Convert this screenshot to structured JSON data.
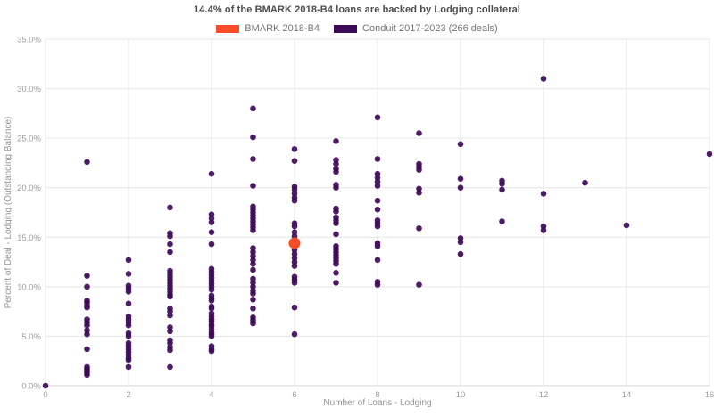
{
  "figure": {
    "title": "14.4% of the BMARK 2018-B4 loans are backed by Lodging collateral"
  },
  "legend": {
    "items": [
      {
        "label": "BMARK 2018-B4",
        "color": "#f94b28"
      },
      {
        "label": "Conduit 2017-2023 (266 deals)",
        "color": "#3d0a57"
      }
    ]
  },
  "chart_data": {
    "type": "scatter",
    "title": "14.4% of the BMARK 2018-B4 loans are backed by Lodging collateral",
    "xlabel": "Number of Loans - Lodging",
    "ylabel": "Percent of Deal - Lodging (Outstanding Balance)",
    "xlim": [
      0,
      16
    ],
    "ylim": [
      0,
      35
    ],
    "x_ticks": [
      0,
      2,
      4,
      6,
      8,
      10,
      12,
      14,
      16
    ],
    "y_ticks": [
      0,
      5,
      10,
      15,
      20,
      25,
      30,
      35
    ],
    "y_tick_suffix": ".0%",
    "grid": true,
    "legend_position": "top-center",
    "colors": {
      "gridline": "#e6e6e6",
      "baseline": "#d4d4d4",
      "tick_text": "#9e9e9e",
      "axis_text": "#949494"
    },
    "series": [
      {
        "name": "Conduit 2017-2023 (266 deals)",
        "color": "#3d0a57",
        "marker_radius": 3.3,
        "opacity": 0.92,
        "columns": [
          {
            "x": 0,
            "ys": [
              0.0
            ]
          },
          {
            "x": 1,
            "ys": [
              22.6,
              11.1,
              10.0,
              8.6,
              8.4,
              8.1,
              7.9,
              6.7,
              6.4,
              6.1,
              5.6,
              5.2,
              3.7,
              1.9,
              1.7,
              1.5,
              1.3,
              1.1
            ]
          },
          {
            "x": 2,
            "ys": [
              12.7,
              11.3,
              10.1,
              9.8,
              9.5,
              8.3,
              7.0,
              6.7,
              6.4,
              6.1,
              5.3,
              5.0,
              4.3,
              4.0,
              3.7,
              3.4,
              3.1,
              2.8,
              2.6,
              1.9
            ]
          },
          {
            "x": 3,
            "ys": [
              18.0,
              15.4,
              15.1,
              14.3,
              13.5,
              11.6,
              11.3,
              11.0,
              10.7,
              10.4,
              10.1,
              9.8,
              9.5,
              9.2,
              9.0,
              7.8,
              7.5,
              7.1,
              5.9,
              5.5,
              4.6,
              4.3,
              3.9,
              3.6,
              1.9
            ]
          },
          {
            "x": 4,
            "ys": [
              21.4,
              17.3,
              16.9,
              16.5,
              15.5,
              14.3,
              11.8,
              11.5,
              11.2,
              10.9,
              10.6,
              10.3,
              10.0,
              9.7,
              9.1,
              8.8,
              8.6,
              8.0,
              7.8,
              7.3,
              7.0,
              6.7,
              6.5,
              6.2,
              6.0,
              5.7,
              5.4,
              5.2,
              5.0,
              4.0,
              3.7,
              3.5
            ]
          },
          {
            "x": 5,
            "ys": [
              28.0,
              25.1,
              22.9,
              20.2,
              18.1,
              17.8,
              17.5,
              17.2,
              16.9,
              16.6,
              16.3,
              16.0,
              15.7,
              13.9,
              13.5,
              13.1,
              12.7,
              12.3,
              11.7,
              10.8,
              10.4,
              10.0,
              9.6,
              9.3,
              8.7,
              7.8,
              6.9,
              6.6,
              6.3
            ]
          },
          {
            "x": 6,
            "ys": [
              23.9,
              22.7,
              20.1,
              19.8,
              19.4,
              19.0,
              18.7,
              16.4,
              16.1,
              15.5,
              15.1,
              14.7,
              14.1,
              13.7,
              13.3,
              12.9,
              12.5,
              12.1,
              11.0,
              10.7,
              10.4,
              7.9,
              5.2
            ]
          },
          {
            "x": 7,
            "ys": [
              24.7,
              22.8,
              22.4,
              21.9,
              21.6,
              20.3,
              20.0,
              17.9,
              17.6,
              17.0,
              16.7,
              16.4,
              15.3,
              14.1,
              13.8,
              13.5,
              13.2,
              12.9,
              12.6,
              12.3,
              11.4,
              10.4
            ]
          },
          {
            "x": 8,
            "ys": [
              27.1,
              22.9,
              21.4,
              21.0,
              20.6,
              20.2,
              18.7,
              17.8,
              16.7,
              16.4,
              16.1,
              14.4,
              14.1,
              12.7,
              10.5,
              10.2
            ]
          },
          {
            "x": 9,
            "ys": [
              25.5,
              22.4,
              22.1,
              21.8,
              19.9,
              19.5,
              15.9,
              10.2
            ]
          },
          {
            "x": 10,
            "ys": [
              24.4,
              20.9,
              20.0,
              14.9,
              14.5,
              13.3
            ]
          },
          {
            "x": 11,
            "ys": [
              20.7,
              20.4,
              19.8,
              16.6
            ]
          },
          {
            "x": 12,
            "ys": [
              31.0,
              19.4,
              16.1,
              15.7
            ]
          },
          {
            "x": 13,
            "ys": [
              20.5
            ]
          },
          {
            "x": 14,
            "ys": [
              16.2
            ]
          },
          {
            "x": 16,
            "ys": [
              23.4
            ]
          }
        ]
      },
      {
        "name": "BMARK 2018-B4",
        "color": "#f94b28",
        "marker_radius": 6.5,
        "opacity": 1,
        "points": [
          [
            6,
            14.4
          ]
        ]
      }
    ]
  }
}
